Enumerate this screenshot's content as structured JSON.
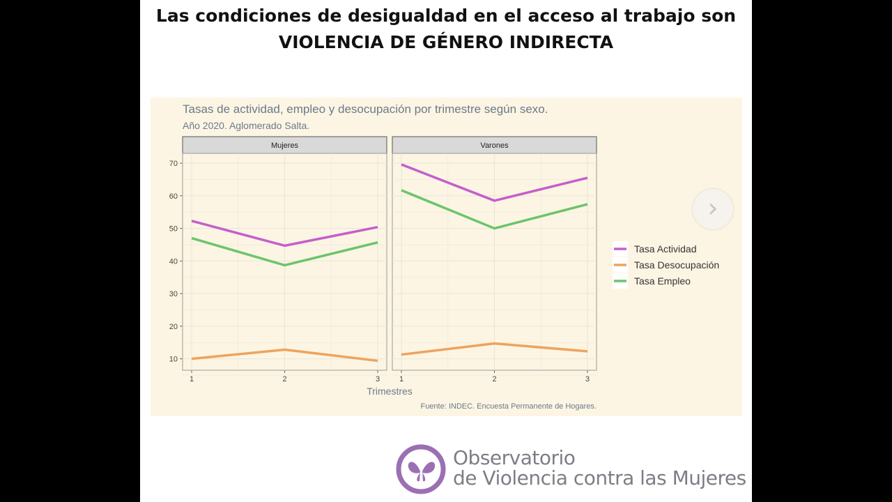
{
  "headline": {
    "line1": "Las condiciones de desigualdad en el acceso al trabajo son",
    "line2": "VIOLENCIA DE GÉNERO INDIRECTA"
  },
  "chart_data": {
    "type": "line",
    "title": "Tasas de actividad, empleo y desocupación por trimestre según sexo.",
    "subtitle": "Año 2020. Aglomerado Salta.",
    "xlabel": "Trimestres",
    "ylabel": "",
    "caption": "Fuente: INDEC. Encuesta Permanente de Hogares.",
    "x": [
      1,
      2,
      3
    ],
    "xticks": [
      "1",
      "2",
      "3"
    ],
    "yticks": [
      "10",
      "20",
      "30",
      "40",
      "50",
      "60",
      "70"
    ],
    "ylim": [
      6.5,
      73
    ],
    "grid": true,
    "legend_position": "right",
    "series_colors": {
      "Tasa Actividad": "#c45fcc",
      "Tasa Desocupación": "#eea35e",
      "Tasa Empleo": "#6cc46b"
    },
    "legend": [
      "Tasa Actividad",
      "Tasa Desocupación",
      "Tasa Empleo"
    ],
    "panels": [
      {
        "name": "Mujeres",
        "series": [
          {
            "name": "Tasa Actividad",
            "values": [
              52.3,
              44.7,
              50.4
            ]
          },
          {
            "name": "Tasa Desocupación",
            "values": [
              10.0,
              12.8,
              9.4
            ]
          },
          {
            "name": "Tasa Empleo",
            "values": [
              47.0,
              38.7,
              45.7
            ]
          }
        ]
      },
      {
        "name": "Varones",
        "series": [
          {
            "name": "Tasa Actividad",
            "values": [
              69.6,
              58.5,
              65.5
            ]
          },
          {
            "name": "Tasa Desocupación",
            "values": [
              11.3,
              14.7,
              12.3
            ]
          },
          {
            "name": "Tasa Empleo",
            "values": [
              61.7,
              50.0,
              57.4
            ]
          }
        ]
      }
    ]
  },
  "nav": {
    "next_icon": "chevron-right-icon",
    "next_glyph": "›"
  },
  "logo": {
    "line1": "Observatorio",
    "line2": "de Violencia contra las Mujeres",
    "color": "#9b6fb4"
  }
}
